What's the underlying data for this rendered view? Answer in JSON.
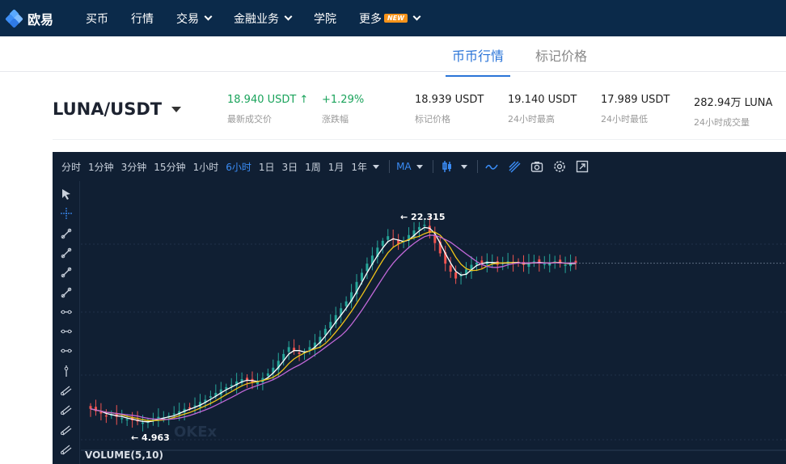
{
  "nav": {
    "logo_text": "欧易",
    "items": [
      {
        "label": "买币",
        "has_dropdown": false
      },
      {
        "label": "行情",
        "has_dropdown": false
      },
      {
        "label": "交易",
        "has_dropdown": true
      },
      {
        "label": "金融业务",
        "has_dropdown": true
      },
      {
        "label": "学院",
        "has_dropdown": false
      },
      {
        "label": "更多",
        "has_dropdown": true,
        "badge": "NEW"
      }
    ]
  },
  "subtabs": [
    {
      "label": "币币行情",
      "active": true
    },
    {
      "label": "标记价格",
      "active": false
    }
  ],
  "ticker": {
    "pair": "LUNA/USDT",
    "last_price": "18.940 USDT",
    "last_price_label": "最新成交价",
    "change": "+1.29%",
    "change_label": "涨跌幅",
    "mark_price": "18.939 USDT",
    "mark_price_label": "标记价格",
    "high_24h": "19.140 USDT",
    "high_24h_label": "24小时最高",
    "low_24h": "17.989 USDT",
    "low_24h_label": "24小时最低",
    "volume_24h": "282.94万 LUNA",
    "volume_24h_label": "24小时成交量"
  },
  "chart_toolbar": {
    "intervals": [
      "分时",
      "1分钟",
      "3分钟",
      "15分钟",
      "1小时",
      "6小时",
      "1日",
      "3日",
      "1周",
      "1月",
      "1年"
    ],
    "active_interval": "6小时",
    "indicator": "MA",
    "icons": [
      "candle-type-icon",
      "line-style-icon",
      "drawing-icon",
      "camera-icon",
      "settings-icon",
      "fullscreen-icon"
    ]
  },
  "side_tools": [
    "cursor-arrow-icon",
    "crosshair-icon",
    "trend-line-icon",
    "ray-line-icon",
    "extended-line-icon",
    "info-line-icon",
    "horizontal-line-icon",
    "horizontal-ray-icon",
    "price-line-icon",
    "vertical-line-icon",
    "parallel-channel-icon",
    "pitchfork-icon",
    "fib-channel-icon",
    "fib-fan-icon"
  ],
  "colors": {
    "accent": "#2a74d8",
    "up": "#1aa35b",
    "chart_bg": "#101f33",
    "candle_up": "#26a69a",
    "candle_down": "#ef5350",
    "ma_white": "#ffffff",
    "ma_yellow": "#f0c419",
    "ma_purple": "#c168d8"
  },
  "chart_data": {
    "type": "candlestick",
    "high_annotation": "22.315",
    "low_annotation": "4.963",
    "volume_label": "VOLUME(5,10)",
    "watermark": "OKEx",
    "close_series": [
      6.2,
      6.0,
      5.8,
      5.6,
      5.7,
      5.5,
      5.4,
      5.3,
      5.2,
      5.1,
      5.0,
      5.1,
      5.3,
      5.5,
      5.4,
      5.6,
      5.8,
      6.0,
      6.2,
      6.3,
      6.5,
      6.8,
      7.0,
      7.3,
      7.6,
      7.9,
      8.1,
      8.3,
      8.6,
      8.8,
      8.7,
      8.5,
      8.6,
      8.9,
      9.3,
      9.8,
      10.4,
      11.0,
      11.6,
      11.3,
      11.0,
      11.2,
      11.6,
      12.0,
      12.5,
      13.2,
      13.8,
      14.4,
      15.0,
      15.6,
      16.4,
      17.3,
      18.1,
      18.9,
      19.6,
      20.3,
      20.9,
      21.3,
      21.0,
      20.6,
      20.9,
      21.4,
      21.8,
      22.1,
      22.3,
      21.6,
      20.7,
      19.8,
      18.9,
      18.2,
      17.6,
      17.9,
      18.4,
      18.8,
      19.0,
      18.9,
      19.1,
      19.0,
      18.8,
      19.0,
      19.1,
      18.9,
      19.0,
      18.8,
      19.0,
      19.1,
      18.9,
      18.9,
      19.0,
      19.1,
      18.9,
      18.8,
      19.0,
      18.94
    ]
  }
}
